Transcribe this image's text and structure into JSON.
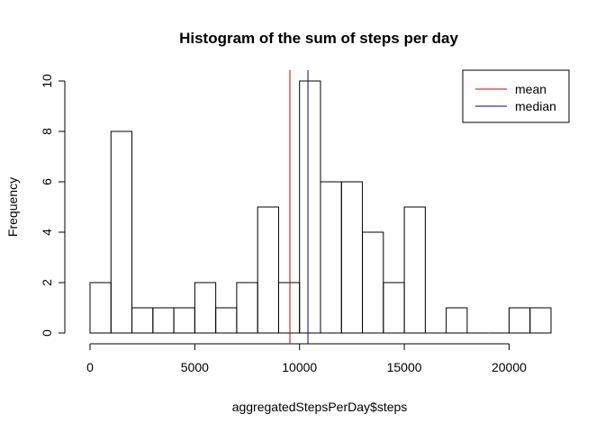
{
  "chart_data": {
    "type": "bar",
    "title": "Histogram of the sum of steps per day",
    "xlabel": "aggregatedStepsPerDay$steps",
    "ylabel": "Frequency",
    "bin_width": 1000,
    "bins": [
      {
        "start": 0,
        "end": 1000,
        "count": 2
      },
      {
        "start": 1000,
        "end": 2000,
        "count": 8
      },
      {
        "start": 2000,
        "end": 3000,
        "count": 1
      },
      {
        "start": 3000,
        "end": 4000,
        "count": 1
      },
      {
        "start": 4000,
        "end": 5000,
        "count": 1
      },
      {
        "start": 5000,
        "end": 6000,
        "count": 2
      },
      {
        "start": 6000,
        "end": 7000,
        "count": 1
      },
      {
        "start": 7000,
        "end": 8000,
        "count": 2
      },
      {
        "start": 8000,
        "end": 9000,
        "count": 5
      },
      {
        "start": 9000,
        "end": 10000,
        "count": 2
      },
      {
        "start": 10000,
        "end": 11000,
        "count": 10
      },
      {
        "start": 11000,
        "end": 12000,
        "count": 6
      },
      {
        "start": 12000,
        "end": 13000,
        "count": 6
      },
      {
        "start": 13000,
        "end": 14000,
        "count": 4
      },
      {
        "start": 14000,
        "end": 15000,
        "count": 2
      },
      {
        "start": 15000,
        "end": 16000,
        "count": 5
      },
      {
        "start": 16000,
        "end": 17000,
        "count": 0
      },
      {
        "start": 17000,
        "end": 18000,
        "count": 1
      },
      {
        "start": 18000,
        "end": 19000,
        "count": 0
      },
      {
        "start": 19000,
        "end": 20000,
        "count": 0
      },
      {
        "start": 20000,
        "end": 21000,
        "count": 1
      },
      {
        "start": 21000,
        "end": 22000,
        "count": 1
      }
    ],
    "xlim": [
      0,
      22000
    ],
    "ylim": [
      0,
      10
    ],
    "x_ticks": [
      0,
      5000,
      10000,
      15000,
      20000
    ],
    "y_ticks": [
      0,
      2,
      4,
      6,
      8,
      10
    ],
    "vlines": [
      {
        "name": "mean",
        "value": 9540,
        "color": "#cc0000"
      },
      {
        "name": "median",
        "value": 10400,
        "color": "#000099"
      }
    ],
    "legend": {
      "position": "top-right",
      "entries": [
        {
          "label": "mean",
          "color": "#cc0000"
        },
        {
          "label": "median",
          "color": "#000099"
        }
      ]
    },
    "grid": false
  }
}
